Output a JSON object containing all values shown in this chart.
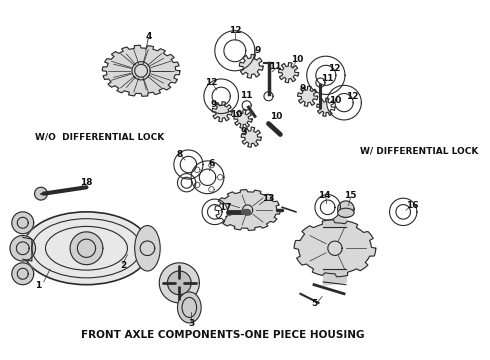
{
  "title": "FRONT AXLE COMPONENTS-ONE PIECE HOUSING",
  "label_wo": "W/O  DIFFERENTIAL LOCK",
  "label_w": "W/ DIFFERENTIAL LOCK",
  "background_color": "#ffffff",
  "line_color": "#2a2a2a",
  "text_color": "#111111",
  "title_fontsize": 7.5,
  "label_fontsize": 6.5,
  "number_fontsize": 6.5,
  "fig_width": 4.9,
  "fig_height": 3.6,
  "dpi": 100
}
